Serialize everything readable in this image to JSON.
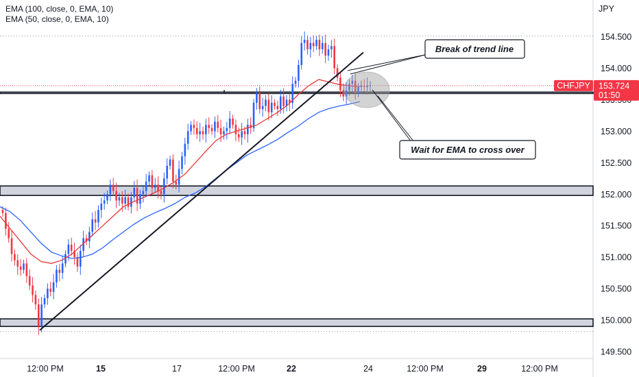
{
  "legend": {
    "ema100": "EMA (100, close, 0, EMA, 10)",
    "ema50": "EMA (50, close, 0, EMA, 10)"
  },
  "currency": "JPY",
  "symbol_tag": {
    "symbol": "CHFJPY",
    "price": "153.724",
    "countdown": "01:50",
    "color": "#f23645"
  },
  "annotations": {
    "break": "Break of trend line",
    "wait": "Wait for EMA to cross over"
  },
  "colors": {
    "up": "#2962ff",
    "down": "#f23645",
    "ema100": "#2962ff",
    "ema50": "#e53935",
    "zone": "#d1d4dc"
  },
  "chart_data": {
    "type": "line",
    "title": "",
    "ylabel": "JPY",
    "ylim": [
      149.35,
      155.0
    ],
    "y_ticks": [
      {
        "value": 154.5,
        "label": "154.500"
      },
      {
        "value": 154.0,
        "label": "154.000"
      },
      {
        "value": 153.5,
        "label": "153.500"
      },
      {
        "value": 153.0,
        "label": "153.000"
      },
      {
        "value": 152.5,
        "label": "152.500"
      },
      {
        "value": 152.0,
        "label": "152.000"
      },
      {
        "value": 151.5,
        "label": "151.500"
      },
      {
        "value": 151.0,
        "label": "151.000"
      },
      {
        "value": 150.5,
        "label": "150.500"
      },
      {
        "value": 150.0,
        "label": "150.000"
      },
      {
        "value": 149.5,
        "label": "149.500"
      }
    ],
    "x_ticks": [
      {
        "label": "12:00 PM",
        "bold": false
      },
      {
        "label": "15",
        "bold": true
      },
      {
        "label": "17",
        "bold": false
      },
      {
        "label": "12:00 PM",
        "bold": false
      },
      {
        "label": "22",
        "bold": true
      },
      {
        "label": "24",
        "bold": false
      },
      {
        "label": "12:00 PM",
        "bold": false
      },
      {
        "label": "29",
        "bold": true
      },
      {
        "label": "12:00 PM",
        "bold": false
      }
    ],
    "price_close": [
      151.7,
      151.45,
      151.3,
      151.05,
      150.95,
      150.85,
      150.8,
      150.9,
      150.7,
      150.55,
      150.4,
      150.25,
      149.9,
      150.25,
      150.35,
      150.5,
      150.45,
      150.6,
      150.8,
      150.75,
      150.9,
      151.05,
      151.2,
      151.1,
      151.0,
      150.85,
      151.1,
      151.3,
      151.25,
      151.4,
      151.6,
      151.55,
      151.75,
      151.85,
      151.9,
      152.0,
      152.15,
      152.05,
      151.9,
      151.95,
      151.85,
      151.95,
      151.8,
      151.95,
      152.1,
      151.85,
      152.0,
      152.05,
      152.2,
      152.3,
      152.1,
      152.15,
      152.05,
      152.0,
      152.25,
      152.45,
      152.55,
      152.2,
      152.15,
      152.4,
      152.6,
      152.8,
      153.0,
      153.1,
      153.05,
      152.95,
      153.0,
      152.95,
      153.1,
      153.05,
      153.0,
      153.15,
      153.05,
      152.95,
      153.0,
      153.05,
      153.2,
      153.1,
      152.95,
      152.9,
      153.0,
      152.95,
      153.1,
      153.05,
      153.45,
      153.6,
      153.35,
      153.4,
      153.5,
      153.3,
      153.45,
      153.4,
      153.35,
      153.55,
      153.4,
      153.5,
      153.45,
      153.75,
      153.8,
      154.05,
      154.4,
      154.45,
      154.3,
      154.4,
      154.35,
      154.45,
      154.3,
      154.4,
      154.2,
      154.3,
      154.35,
      154.0,
      153.85,
      153.65,
      153.55,
      153.65,
      153.75,
      153.8,
      153.6,
      153.7,
      153.72,
      153.7,
      153.72,
      153.724
    ],
    "series": [
      {
        "name": "EMA (100, close, 0, EMA, 10)",
        "x": [
          0,
          15,
          30,
          45,
          60,
          75,
          90,
          105,
          120,
          135,
          150,
          165,
          180,
          195,
          210,
          225,
          240,
          255,
          270,
          285,
          300,
          315,
          330,
          345,
          360,
          375,
          390,
          405,
          420,
          435,
          450,
          465,
          480,
          495,
          510,
          525
        ],
        "values": [
          151.8,
          151.72,
          151.58,
          151.4,
          151.22,
          151.08,
          151.02,
          150.98,
          151.0,
          151.05,
          151.15,
          151.28,
          151.4,
          151.52,
          151.62,
          151.7,
          151.77,
          151.85,
          151.95,
          152.02,
          152.12,
          152.25,
          152.38,
          152.5,
          152.62,
          152.7,
          152.78,
          152.87,
          152.98,
          153.08,
          153.2,
          153.3,
          153.36,
          153.4,
          153.43,
          153.47
        ]
      },
      {
        "name": "EMA (50, close, 0, EMA, 10)",
        "x": [
          0,
          15,
          30,
          45,
          60,
          75,
          90,
          105,
          120,
          135,
          150,
          165,
          180,
          195,
          210,
          225,
          240,
          255,
          270,
          285,
          300,
          315,
          330,
          345,
          360,
          375,
          390,
          405,
          420,
          435,
          450,
          465,
          480,
          495,
          510,
          525
        ],
        "values": [
          151.65,
          151.45,
          151.25,
          151.05,
          150.93,
          150.9,
          150.95,
          151.05,
          151.2,
          151.35,
          151.5,
          151.65,
          151.8,
          151.88,
          151.95,
          152.02,
          152.1,
          152.2,
          152.32,
          152.5,
          152.68,
          152.85,
          152.95,
          153.0,
          153.05,
          153.1,
          153.2,
          153.3,
          153.42,
          153.58,
          153.72,
          153.82,
          153.78,
          153.74,
          153.72,
          153.71
        ]
      }
    ],
    "levels": {
      "support_zone_low": [
        149.9,
        150.02
      ],
      "support_zone_mid": [
        151.98,
        152.13
      ],
      "resistance_line": [
        153.6,
        153.62
      ],
      "dotted_high": 154.51,
      "dotted_low": 149.82,
      "current_price": 153.724
    },
    "trend_line": {
      "from": [
        58,
        149.84
      ],
      "to": [
        530,
        154.25
      ]
    },
    "grid": false,
    "legend_position": "top-left"
  }
}
